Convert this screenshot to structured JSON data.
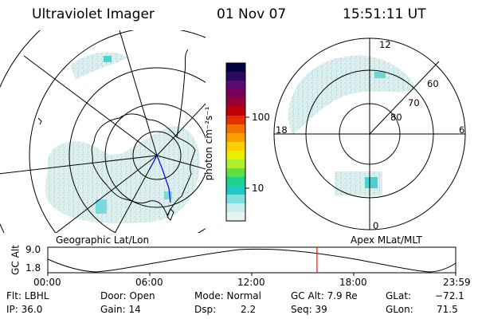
{
  "header": {
    "instrument": "Ultraviolet Imager",
    "date": "01 Nov 07",
    "time": "15:51:11 UT"
  },
  "left_panel": {
    "label": "Geographic Lat/Lon"
  },
  "right_panel": {
    "label": "Apex MLat/MLT",
    "mlt_labels": {
      "top": "12",
      "left": "18",
      "right": "6",
      "bottom": "0"
    },
    "lat_labels": [
      "60",
      "70",
      "80"
    ]
  },
  "colorbar": {
    "unit_label": "photon cm⁻²s⁻¹",
    "ticks": [
      "100",
      "10"
    ],
    "colors": [
      "#000040",
      "#2b0a5a",
      "#5a0a6e",
      "#7a0055",
      "#9a0030",
      "#c00000",
      "#e03000",
      "#f07000",
      "#f8a000",
      "#f8d000",
      "#e8f000",
      "#b0f030",
      "#60e040",
      "#20d090",
      "#20c8c8",
      "#80e0e0",
      "#c8ecec",
      "#e6f3f3"
    ]
  },
  "altitude_strip": {
    "axis_label": "GC Alt",
    "ymax": "9.0",
    "ymin": "1.8",
    "time_ticks": [
      "00:00",
      "06:00",
      "12:00",
      "18:00",
      "23:59"
    ],
    "current_time_fraction": 0.66,
    "marker_color": "#ff0000"
  },
  "status": {
    "flt": "Flt: LBHL",
    "ip": "IP: 36.0",
    "door": "Door: Open",
    "gain": "Gain: 14",
    "mode": "Mode: Normal",
    "dsp_label": "Dsp:",
    "dsp_value": "2.2",
    "gc_alt": "GC Alt: 7.9 Re",
    "seq": "Seq: 39",
    "glat_label": "GLat:",
    "glat_value": "−72.1",
    "glon_label": "GLon:",
    "glon_value": "71.5"
  }
}
